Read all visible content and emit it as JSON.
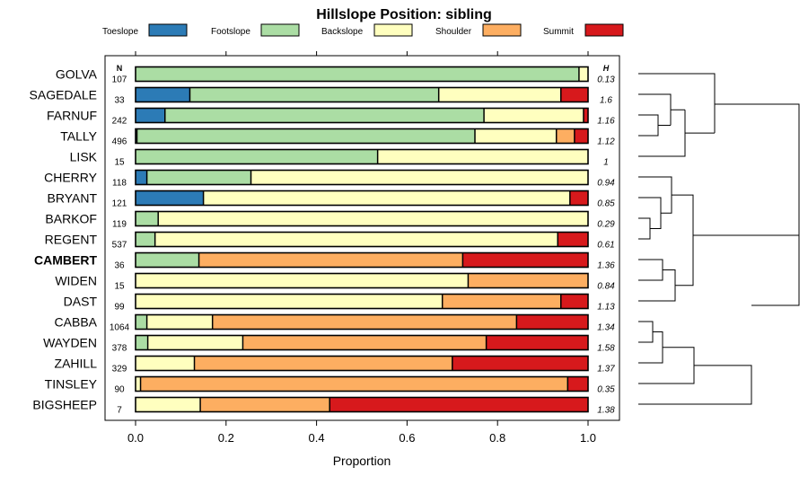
{
  "chart_data": {
    "type": "bar",
    "orientation": "horizontal",
    "stacked": true,
    "title": "Hillslope Position: sibling",
    "xlabel": "Proportion",
    "xlim": [
      0,
      1
    ],
    "x_ticks": [
      0.0,
      0.2,
      0.4,
      0.6,
      0.8,
      1.0
    ],
    "x_tick_labels": [
      "0.0",
      "0.2",
      "0.4",
      "0.6",
      "0.8",
      "1.0"
    ],
    "n_header": "N",
    "h_header": "H",
    "highlight": "CAMBERT",
    "legend": [
      {
        "name": "Toeslope",
        "color": "#2c7bb6"
      },
      {
        "name": "Footslope",
        "color": "#abdda4"
      },
      {
        "name": "Backslope",
        "color": "#ffffbf"
      },
      {
        "name": "Shoulder",
        "color": "#fdae61"
      },
      {
        "name": "Summit",
        "color": "#d7191c"
      }
    ],
    "categories": [
      "GOLVA",
      "SAGEDALE",
      "FARNUF",
      "TALLY",
      "LISK",
      "CHERRY",
      "BRYANT",
      "BARKOF",
      "REGENT",
      "CAMBERT",
      "WIDEN",
      "DAST",
      "CABBA",
      "WAYDEN",
      "ZAHILL",
      "TINSLEY",
      "BIGSHEEP"
    ],
    "n": [
      "107",
      "33",
      "242",
      "496",
      "15",
      "118",
      "121",
      "119",
      "537",
      "36",
      "15",
      "99",
      "1064",
      "378",
      "329",
      "90",
      "7"
    ],
    "h": [
      "0.13",
      "1.6",
      "1.16",
      "1.12",
      "1",
      "0.94",
      "0.85",
      "0.29",
      "0.61",
      "1.36",
      "0.84",
      "1.13",
      "1.34",
      "1.58",
      "1.37",
      "0.35",
      "1.38"
    ],
    "series": [
      {
        "name": "Toeslope",
        "values": [
          0.0,
          0.12,
          0.065,
          0.003,
          0.0,
          0.025,
          0.15,
          0.0,
          0.0,
          0.0,
          0.0,
          0.0,
          0.0,
          0.0,
          0.0,
          0.0,
          0.0
        ]
      },
      {
        "name": "Footslope",
        "values": [
          0.98,
          0.55,
          0.705,
          0.747,
          0.535,
          0.23,
          0.0,
          0.05,
          0.043,
          0.14,
          0.0,
          0.0,
          0.025,
          0.027,
          0.0,
          0.0,
          0.0
        ]
      },
      {
        "name": "Backslope",
        "values": [
          0.02,
          0.27,
          0.22,
          0.18,
          0.465,
          0.745,
          0.81,
          0.95,
          0.89,
          0.0,
          0.735,
          0.678,
          0.145,
          0.21,
          0.13,
          0.011,
          0.143
        ]
      },
      {
        "name": "Shoulder",
        "values": [
          0.0,
          0.0,
          0.0,
          0.04,
          0.0,
          0.0,
          0.0,
          0.0,
          0.0,
          0.583,
          0.265,
          0.262,
          0.672,
          0.538,
          0.57,
          0.944,
          0.286
        ]
      },
      {
        "name": "Summit",
        "values": [
          0.0,
          0.06,
          0.01,
          0.03,
          0.0,
          0.0,
          0.04,
          0.0,
          0.067,
          0.277,
          0.0,
          0.06,
          0.158,
          0.225,
          0.3,
          0.045,
          0.571
        ]
      }
    ]
  }
}
